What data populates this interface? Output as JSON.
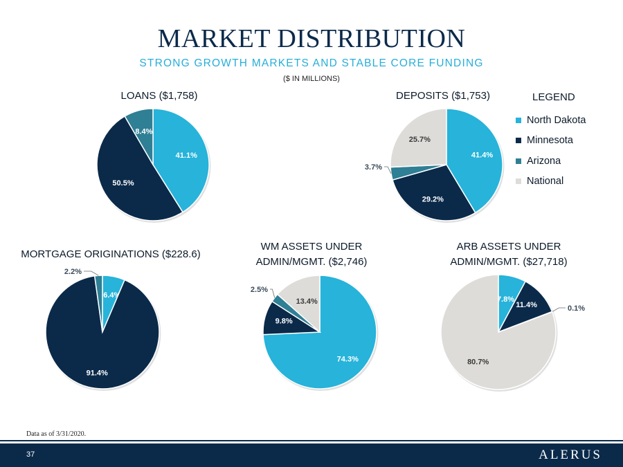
{
  "header": {
    "title": "MARKET DISTRIBUTION",
    "subtitle": "STRONG GROWTH MARKETS AND STABLE CORE FUNDING",
    "units": "($ IN MILLIONS)"
  },
  "colors": {
    "north_dakota": "#27b3da",
    "minnesota": "#0b2a4a",
    "arizona": "#2f7f95",
    "national": "#dedcd9",
    "title": "#0b2a4a",
    "subtitle": "#27aed8"
  },
  "legend": {
    "title": "LEGEND",
    "items": [
      {
        "label": "North Dakota",
        "color": "#27b3da"
      },
      {
        "label": "Minnesota",
        "color": "#0b2a4a"
      },
      {
        "label": "Arizona",
        "color": "#2f7f95"
      },
      {
        "label": "National",
        "color": "#dedcd9"
      }
    ]
  },
  "chart_data": [
    {
      "type": "pie",
      "id": "loans",
      "title": "LOANS ($1,758)",
      "slices": [
        {
          "category": "North Dakota",
          "value": 41.1,
          "label": "41.1%"
        },
        {
          "category": "Minnesota",
          "value": 50.5,
          "label": "50.5%"
        },
        {
          "category": "Arizona",
          "value": 8.4,
          "label": "8.4%"
        }
      ]
    },
    {
      "type": "pie",
      "id": "deposits",
      "title": "DEPOSITS ($1,753)",
      "slices": [
        {
          "category": "North Dakota",
          "value": 41.4,
          "label": "41.4%"
        },
        {
          "category": "Minnesota",
          "value": 29.2,
          "label": "29.2%"
        },
        {
          "category": "Arizona",
          "value": 3.7,
          "label": "3.7%"
        },
        {
          "category": "National",
          "value": 25.7,
          "label": "25.7%"
        }
      ]
    },
    {
      "type": "pie",
      "id": "mortgage",
      "title": "MORTGAGE ORIGINATIONS ($228.6)",
      "slices": [
        {
          "category": "North Dakota",
          "value": 6.4,
          "label": "6.4%"
        },
        {
          "category": "Minnesota",
          "value": 91.4,
          "label": "91.4%"
        },
        {
          "category": "Arizona",
          "value": 2.2,
          "label": "2.2%"
        }
      ]
    },
    {
      "type": "pie",
      "id": "wm",
      "title_lines": [
        "WM ASSETS UNDER",
        "ADMIN/MGMT. ($2,746)"
      ],
      "slices": [
        {
          "category": "North Dakota",
          "value": 74.3,
          "label": "74.3%"
        },
        {
          "category": "Minnesota",
          "value": 9.8,
          "label": "9.8%"
        },
        {
          "category": "Arizona",
          "value": 2.5,
          "label": "2.5%"
        },
        {
          "category": "National",
          "value": 13.4,
          "label": "13.4%"
        }
      ]
    },
    {
      "type": "pie",
      "id": "arb",
      "title_lines": [
        "ARB ASSETS UNDER",
        "ADMIN/MGMT. ($27,718)"
      ],
      "slices": [
        {
          "category": "North Dakota",
          "value": 7.8,
          "label": "7.8%"
        },
        {
          "category": "Minnesota",
          "value": 11.4,
          "label": "11.4%"
        },
        {
          "category": "Arizona",
          "value": 0.1,
          "label": "0.1%"
        },
        {
          "category": "National",
          "value": 80.7,
          "label": "80.7%"
        }
      ]
    }
  ],
  "footer": {
    "note": "Data as of 3/31/2020.",
    "page_number": "37",
    "brand": "ALERUS"
  }
}
